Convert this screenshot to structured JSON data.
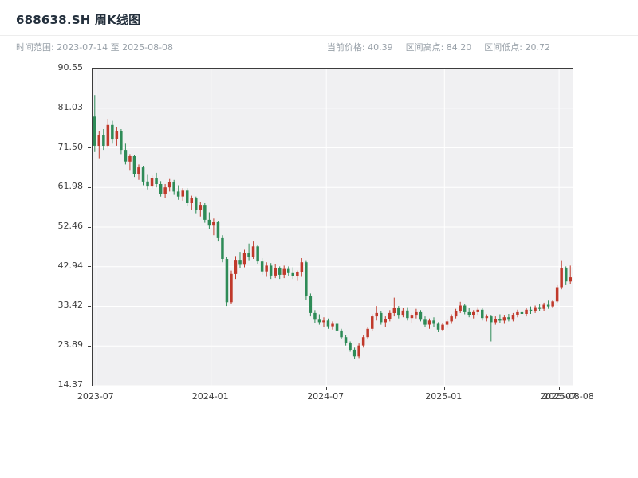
{
  "header": {
    "title": "688638.SH 周K线图",
    "time_range": "时间范围: 2023-07-14 至 2025-08-08",
    "current_price": "当前价格: 40.39",
    "range_high": "区间高点: 84.20",
    "range_low": "区间低点: 20.72"
  },
  "chart_data": {
    "type": "candlestick",
    "symbol": "688638.SH",
    "period_label": "周K线图",
    "start_date": "2023-07-14",
    "end_date": "2025-08-08",
    "current_price": 40.39,
    "range_high": 84.2,
    "range_low": 20.72,
    "ylim": [
      14.37,
      90.55
    ],
    "y_ticks": [
      90.55,
      81.03,
      71.5,
      61.98,
      52.46,
      42.94,
      33.42,
      23.89,
      14.37
    ],
    "x_ticks": [
      {
        "label": "2023-07",
        "pos": 0.008
      },
      {
        "label": "2024-01",
        "pos": 0.247
      },
      {
        "label": "2024-07",
        "pos": 0.487
      },
      {
        "label": "2025-01",
        "pos": 0.733
      },
      {
        "label": "2025-07",
        "pos": 0.972
      }
    ],
    "x_end_label": {
      "label": "2025-08-08",
      "pos": 0.993
    },
    "up_color": "#c0392b",
    "down_color": "#2e8b57",
    "grid_color": "#ffffff",
    "plot_background": "#f0f0f2",
    "candles": [
      [
        79.0,
        84.2,
        70.5,
        72.0
      ],
      [
        72.0,
        75.5,
        69.0,
        74.5
      ],
      [
        74.5,
        76.0,
        71.0,
        72.0
      ],
      [
        72.0,
        78.5,
        71.5,
        77.0
      ],
      [
        77.0,
        78.0,
        72.5,
        73.5
      ],
      [
        73.5,
        76.5,
        72.0,
        75.5
      ],
      [
        75.5,
        76.0,
        70.0,
        71.0
      ],
      [
        71.0,
        72.5,
        67.5,
        68.2
      ],
      [
        68.2,
        70.0,
        66.0,
        69.5
      ],
      [
        69.5,
        69.8,
        64.5,
        65.2
      ],
      [
        65.2,
        67.5,
        63.8,
        66.8
      ],
      [
        66.8,
        67.2,
        62.5,
        63.4
      ],
      [
        63.4,
        65.0,
        61.5,
        62.2
      ],
      [
        62.2,
        64.8,
        61.8,
        64.2
      ],
      [
        64.2,
        65.5,
        62.0,
        62.8
      ],
      [
        62.8,
        63.5,
        59.8,
        60.5
      ],
      [
        60.5,
        62.8,
        59.5,
        62.0
      ],
      [
        62.0,
        64.0,
        61.0,
        63.2
      ],
      [
        63.2,
        63.8,
        60.2,
        61.0
      ],
      [
        61.0,
        62.5,
        59.0,
        59.8
      ],
      [
        59.8,
        61.8,
        58.8,
        61.2
      ],
      [
        61.2,
        61.8,
        57.5,
        58.2
      ],
      [
        58.2,
        60.0,
        56.5,
        59.4
      ],
      [
        59.4,
        59.8,
        55.8,
        56.6
      ],
      [
        56.6,
        58.5,
        55.0,
        57.8
      ],
      [
        57.8,
        58.2,
        53.5,
        54.2
      ],
      [
        54.2,
        56.0,
        52.0,
        52.8
      ],
      [
        52.8,
        54.5,
        50.5,
        53.6
      ],
      [
        53.6,
        54.0,
        49.0,
        49.8
      ],
      [
        49.8,
        50.5,
        44.0,
        44.8
      ],
      [
        44.8,
        45.2,
        33.5,
        34.4
      ],
      [
        34.4,
        42.0,
        34.0,
        41.2
      ],
      [
        41.2,
        45.5,
        40.0,
        44.6
      ],
      [
        44.6,
        46.5,
        42.5,
        43.4
      ],
      [
        43.4,
        47.0,
        42.8,
        46.2
      ],
      [
        46.2,
        48.5,
        44.5,
        45.2
      ],
      [
        45.2,
        49.0,
        44.8,
        47.8
      ],
      [
        47.8,
        48.2,
        43.5,
        44.2
      ],
      [
        44.2,
        45.0,
        41.0,
        41.8
      ],
      [
        41.8,
        44.0,
        40.5,
        43.2
      ],
      [
        43.2,
        43.8,
        40.0,
        40.8
      ],
      [
        40.8,
        43.5,
        40.2,
        42.6
      ],
      [
        42.6,
        43.0,
        40.0,
        41.0
      ],
      [
        41.0,
        43.2,
        40.2,
        42.4
      ],
      [
        42.4,
        43.0,
        40.8,
        41.4
      ],
      [
        41.4,
        42.8,
        40.0,
        40.6
      ],
      [
        40.6,
        42.0,
        39.5,
        41.6
      ],
      [
        41.6,
        45.0,
        40.5,
        44.0
      ],
      [
        44.0,
        44.5,
        35.0,
        36.0
      ],
      [
        36.0,
        36.5,
        31.0,
        31.8
      ],
      [
        31.8,
        32.5,
        29.5,
        30.2
      ],
      [
        30.2,
        31.5,
        29.0,
        29.6
      ],
      [
        29.6,
        30.8,
        28.5,
        30.0
      ],
      [
        30.0,
        30.5,
        28.0,
        28.6
      ],
      [
        28.6,
        29.8,
        27.8,
        29.2
      ],
      [
        29.2,
        29.6,
        27.0,
        27.6
      ],
      [
        27.6,
        28.0,
        25.5,
        26.0
      ],
      [
        26.0,
        26.5,
        24.0,
        24.6
      ],
      [
        24.6,
        25.0,
        22.5,
        23.0
      ],
      [
        23.0,
        23.5,
        20.72,
        21.4
      ],
      [
        21.4,
        24.5,
        21.0,
        24.0
      ],
      [
        24.0,
        26.5,
        23.5,
        26.0
      ],
      [
        26.0,
        28.5,
        25.5,
        28.0
      ],
      [
        28.0,
        31.5,
        27.5,
        31.0
      ],
      [
        31.0,
        33.5,
        30.0,
        31.8
      ],
      [
        31.8,
        32.2,
        29.0,
        29.6
      ],
      [
        29.6,
        31.0,
        28.5,
        30.4
      ],
      [
        30.4,
        32.5,
        29.8,
        31.8
      ],
      [
        31.8,
        35.5,
        31.0,
        33.0
      ],
      [
        33.0,
        33.5,
        30.5,
        31.2
      ],
      [
        31.2,
        33.0,
        30.8,
        32.4
      ],
      [
        32.4,
        33.2,
        30.0,
        30.6
      ],
      [
        30.6,
        31.8,
        29.5,
        31.2
      ],
      [
        31.2,
        32.8,
        30.5,
        32.0
      ],
      [
        32.0,
        32.5,
        29.8,
        30.2
      ],
      [
        30.2,
        31.0,
        28.5,
        29.0
      ],
      [
        29.0,
        30.5,
        28.0,
        30.0
      ],
      [
        30.0,
        30.8,
        28.5,
        29.2
      ],
      [
        29.2,
        29.6,
        27.2,
        27.8
      ],
      [
        27.8,
        29.5,
        27.5,
        29.0
      ],
      [
        29.0,
        30.2,
        28.2,
        29.8
      ],
      [
        29.8,
        31.5,
        29.2,
        31.0
      ],
      [
        31.0,
        32.8,
        30.5,
        32.2
      ],
      [
        32.2,
        34.5,
        31.8,
        33.6
      ],
      [
        33.6,
        34.0,
        31.5,
        32.0
      ],
      [
        32.0,
        33.0,
        30.8,
        31.4
      ],
      [
        31.4,
        32.5,
        30.5,
        32.0
      ],
      [
        32.0,
        33.2,
        31.2,
        32.6
      ],
      [
        32.6,
        33.0,
        30.0,
        30.6
      ],
      [
        30.6,
        31.5,
        29.8,
        31.0
      ],
      [
        31.0,
        31.2,
        25.0,
        29.6
      ],
      [
        29.6,
        31.0,
        29.0,
        30.4
      ],
      [
        30.4,
        31.5,
        29.5,
        30.0
      ],
      [
        30.0,
        31.2,
        29.2,
        30.8
      ],
      [
        30.8,
        31.6,
        29.8,
        30.2
      ],
      [
        30.2,
        31.8,
        29.8,
        31.4
      ],
      [
        31.4,
        32.6,
        30.8,
        32.0
      ],
      [
        32.0,
        32.8,
        31.0,
        31.6
      ],
      [
        31.6,
        33.0,
        31.0,
        32.6
      ],
      [
        32.6,
        33.4,
        31.6,
        32.2
      ],
      [
        32.2,
        33.6,
        31.8,
        33.2
      ],
      [
        33.2,
        34.0,
        32.3,
        32.8
      ],
      [
        32.8,
        34.3,
        32.3,
        33.8
      ],
      [
        33.8,
        34.8,
        32.8,
        33.4
      ],
      [
        33.4,
        35.0,
        33.0,
        34.6
      ],
      [
        34.6,
        38.5,
        34.3,
        38.0
      ],
      [
        38.0,
        44.5,
        37.5,
        42.5
      ],
      [
        42.5,
        43.0,
        38.5,
        39.4
      ],
      [
        39.4,
        43.2,
        38.8,
        40.39
      ]
    ]
  }
}
